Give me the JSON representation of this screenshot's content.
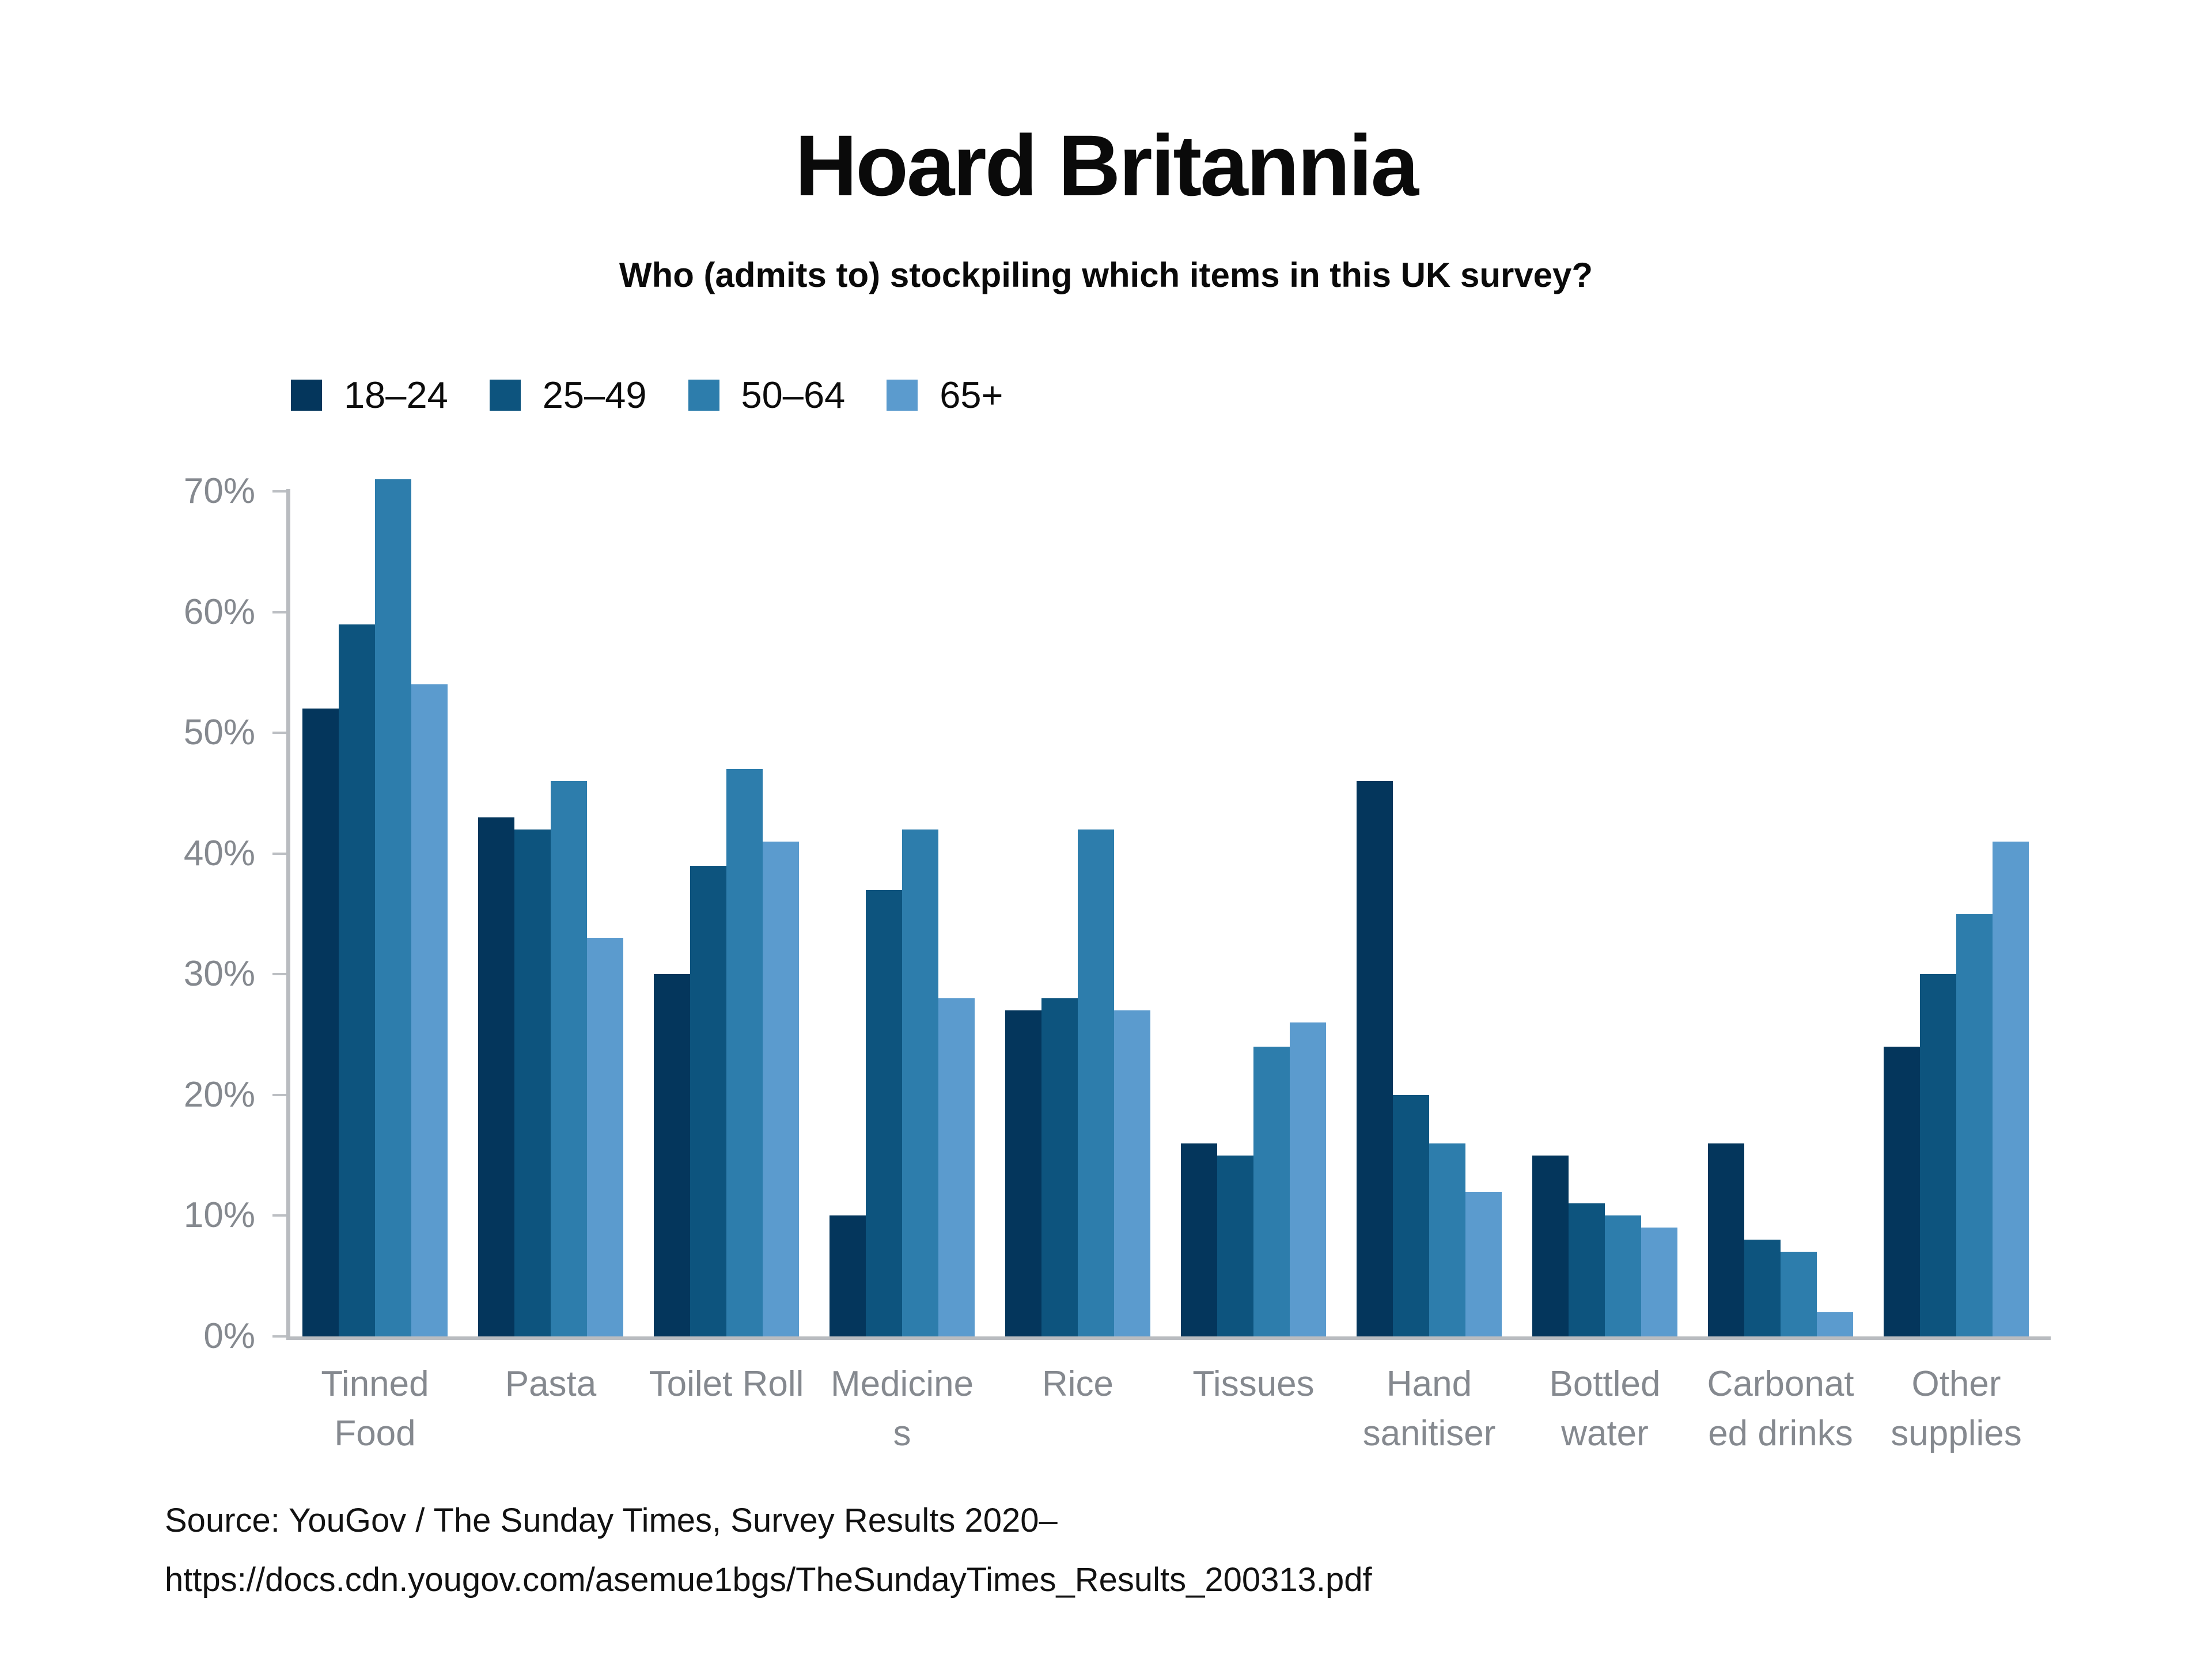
{
  "title": "Hoard Britannia",
  "subtitle": "Who (admits to) stockpiling which items in this UK survey?",
  "source": {
    "line1": "Source: YouGov / The Sunday Times, Survey Results 2020–",
    "line2": "https://docs.cdn.yougov.com/asemue1bgs/TheSundayTimes_Results_200313.pdf"
  },
  "colors": {
    "axis": "#b9bcc0",
    "tick_label": "#85898f",
    "category_label": "#85898f",
    "text": "#0a0a0a"
  },
  "chart_data": {
    "type": "bar",
    "title": "Hoard Britannia",
    "subtitle": "Who (admits to) stockpiling which items in this UK survey?",
    "categories": [
      "Tinned Food",
      "Pasta",
      "Toilet Roll",
      "Medicines",
      "Rice",
      "Tissues",
      "Hand sanitiser",
      "Bottled water",
      "Carbonated drinks",
      "Other supplies"
    ],
    "category_label_lines": [
      [
        "Tinned",
        "Food"
      ],
      [
        "Pasta"
      ],
      [
        "Toilet Roll"
      ],
      [
        "Medicine",
        "s"
      ],
      [
        "Rice"
      ],
      [
        "Tissues"
      ],
      [
        "Hand",
        "sanitiser"
      ],
      [
        "Bottled",
        "water"
      ],
      [
        "Carbonat",
        "ed drinks"
      ],
      [
        "Other",
        "supplies"
      ]
    ],
    "series": [
      {
        "name": "18–24",
        "color": "#04365c",
        "values": [
          52,
          43,
          30,
          10,
          27,
          16,
          46,
          15,
          16,
          24
        ]
      },
      {
        "name": "25–49",
        "color": "#0d547e",
        "values": [
          59,
          42,
          39,
          37,
          28,
          15,
          20,
          11,
          8,
          30
        ]
      },
      {
        "name": "50–64",
        "color": "#2d7dac",
        "values": [
          71,
          46,
          47,
          42,
          42,
          24,
          16,
          10,
          7,
          35
        ]
      },
      {
        "name": "65+",
        "color": "#5b9bce",
        "values": [
          54,
          33,
          41,
          28,
          27,
          26,
          12,
          9,
          2,
          41
        ]
      }
    ],
    "xlabel": "",
    "ylabel": "",
    "ylim": [
      0,
      70
    ],
    "ytick_step": 10,
    "ytick_labels": [
      "0%",
      "10%",
      "20%",
      "30%",
      "40%",
      "50%",
      "60%",
      "70%"
    ],
    "grid": false,
    "legend_position": "top-left",
    "unit": "percent"
  }
}
